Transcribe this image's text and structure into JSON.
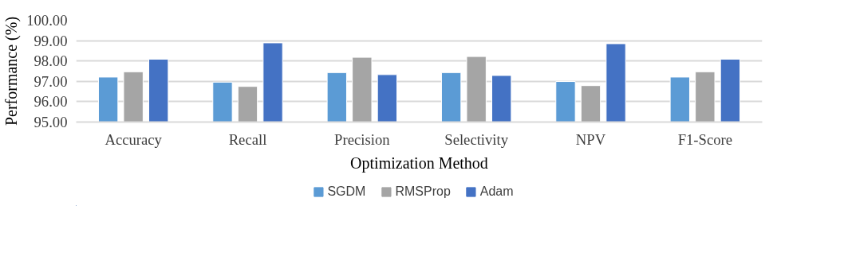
{
  "chart_data": {
    "type": "bar",
    "xlabel": "Optimization Method",
    "ylabel": "Performance (%)",
    "categories": [
      "Accuracy",
      "Recall",
      "Precision",
      "Selectivity",
      "NPV",
      "F1-Score"
    ],
    "series": [
      {
        "name": "SGDM",
        "color": "#5b9bd5",
        "values": [
          97.21,
          96.96,
          97.43,
          97.43,
          96.99,
          97.21
        ]
      },
      {
        "name": "RMSProp",
        "color": "#a5a5a5",
        "values": [
          97.47,
          96.75,
          98.18,
          98.22,
          96.79,
          97.47
        ]
      },
      {
        "name": "Adam",
        "color": "#4472c4",
        "values": [
          98.09,
          98.89,
          97.33,
          97.29,
          98.85,
          98.09
        ]
      }
    ],
    "ylim": [
      95,
      100
    ],
    "yticks": [
      {
        "value": 95,
        "label": "95.00"
      },
      {
        "value": 96,
        "label": "96.00"
      },
      {
        "value": 97,
        "label": "97.00"
      },
      {
        "value": 98,
        "label": "98.00"
      },
      {
        "value": 99,
        "label": "99.00"
      },
      {
        "value": 100,
        "label": "100.00"
      }
    ],
    "grid": "y",
    "legend": "bottom"
  }
}
